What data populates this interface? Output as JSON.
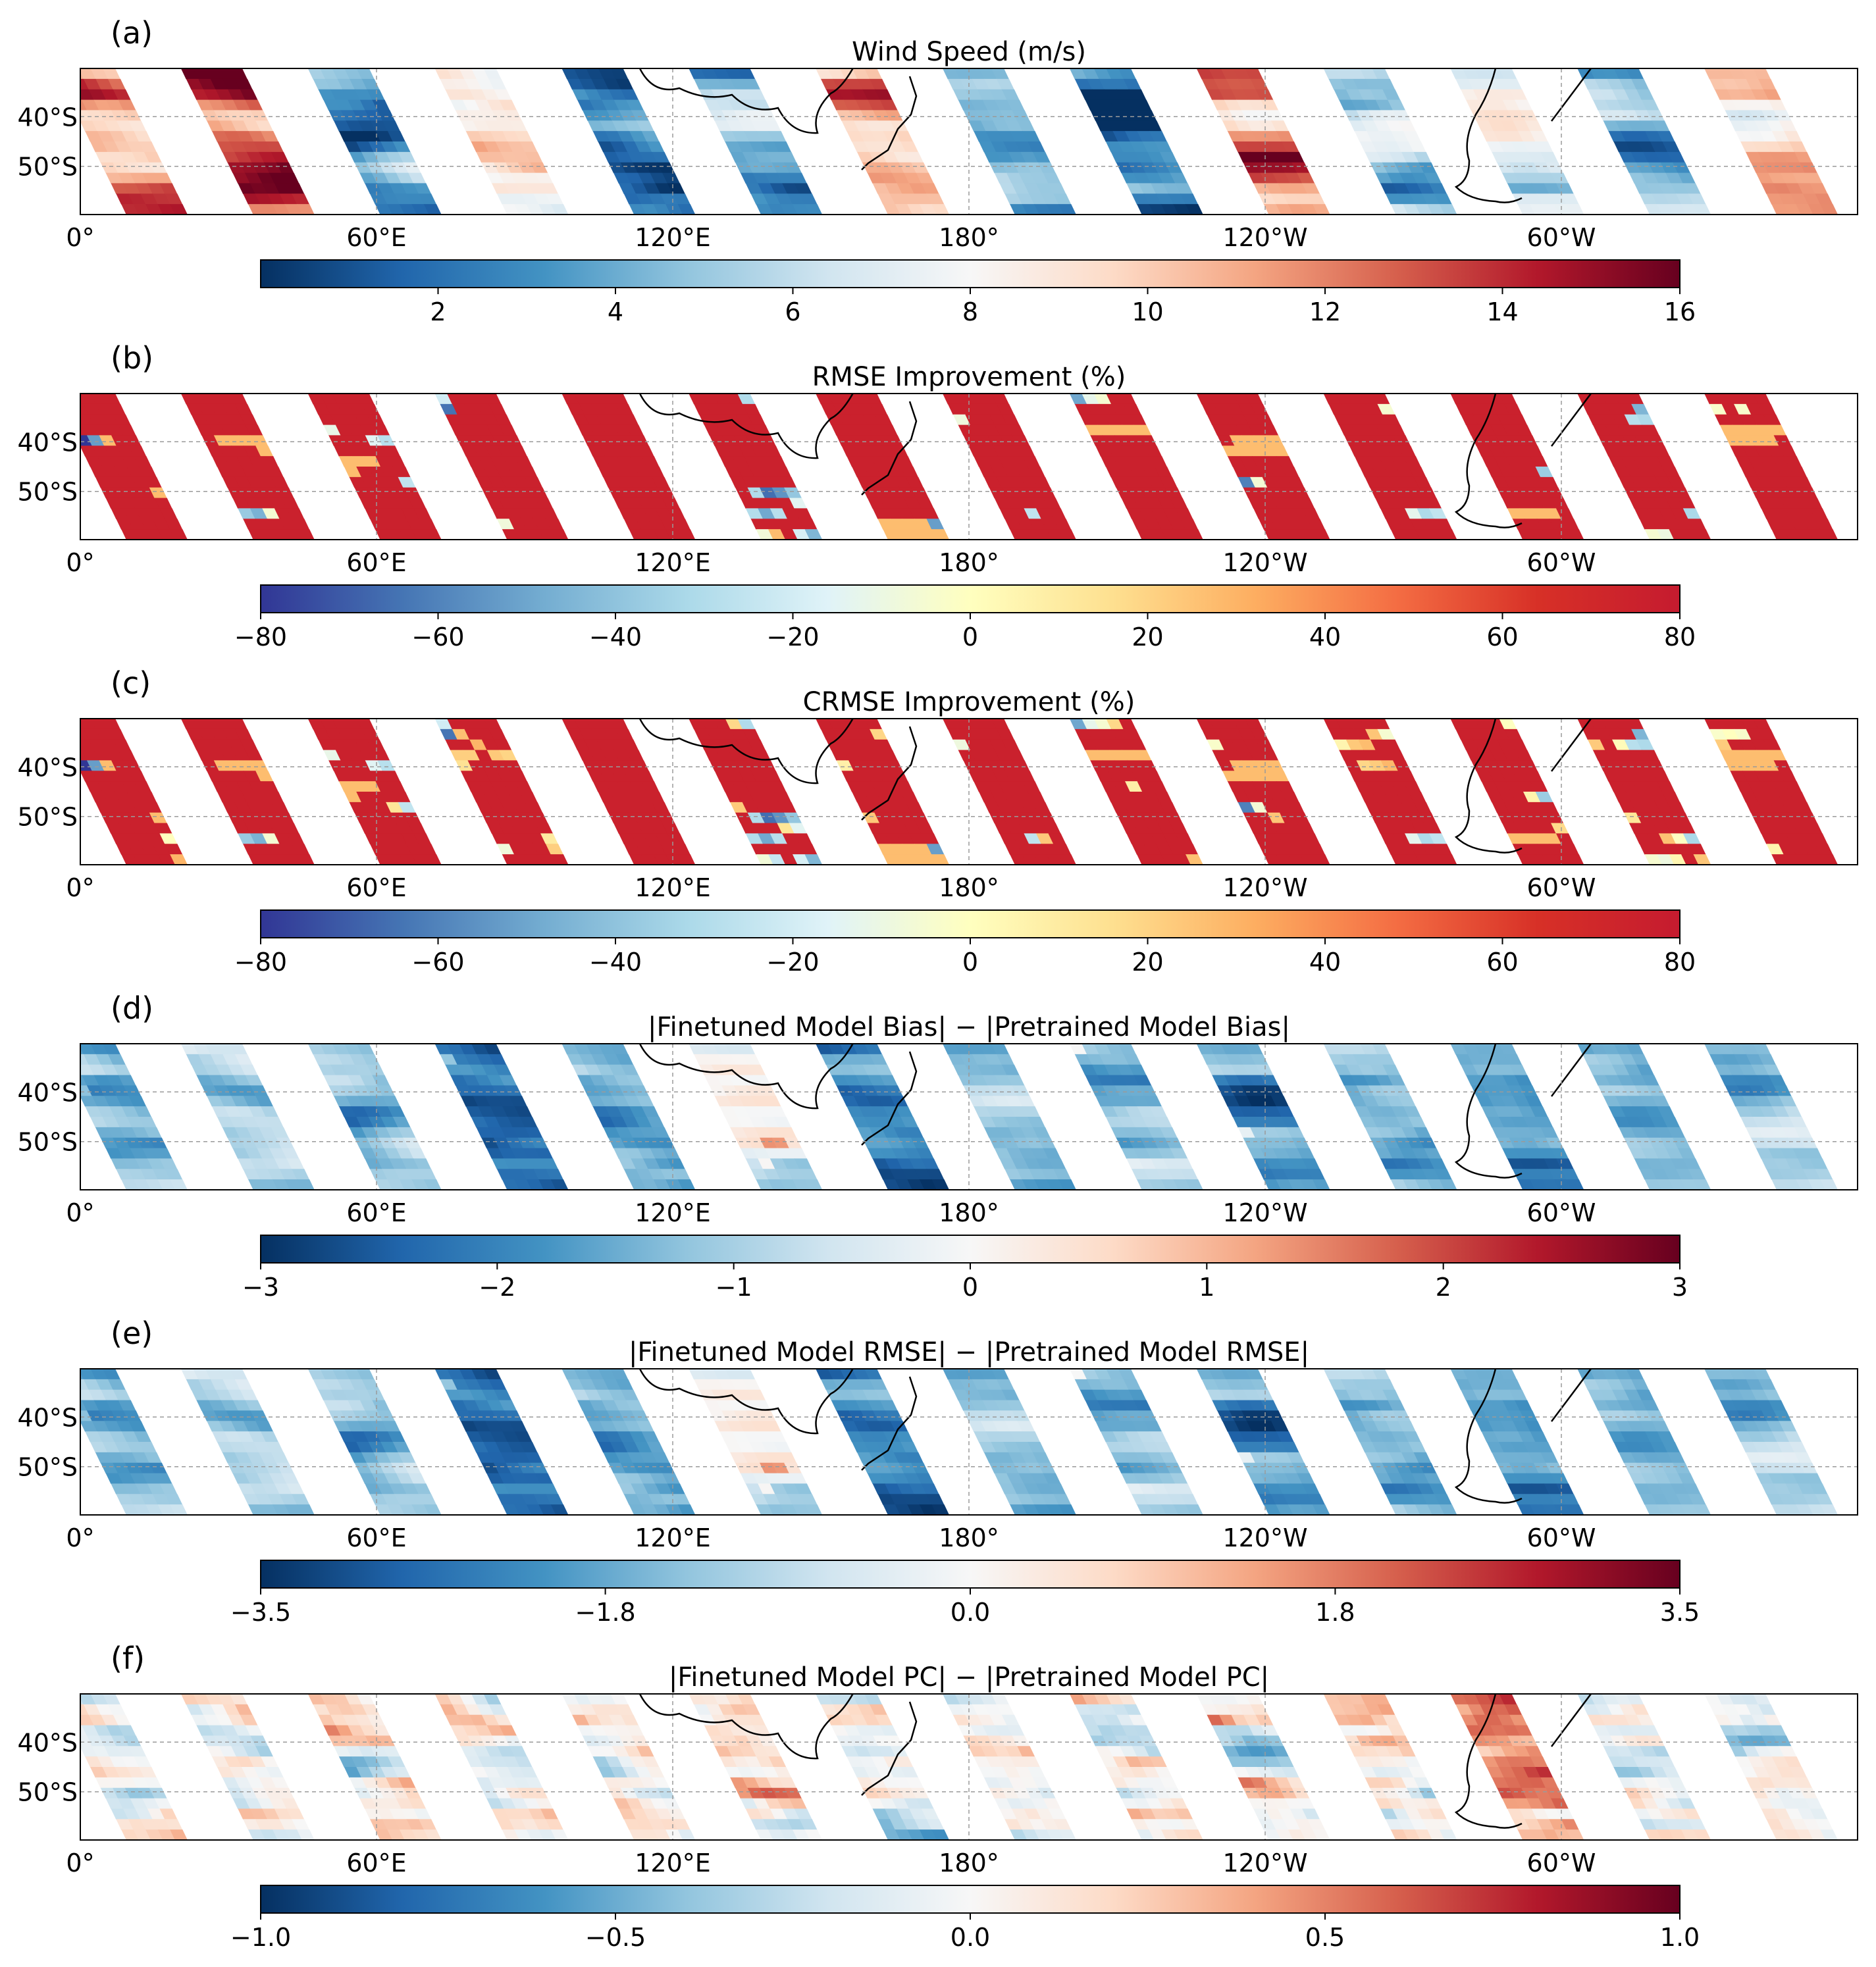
{
  "panels": [
    {
      "letter": "(a)",
      "title": "Wind Speed (m/s)",
      "cmap": "RdBu_r",
      "cticks": [
        "2",
        "4",
        "6",
        "8",
        "10",
        "12",
        "14",
        "16"
      ],
      "crange": [
        0,
        16
      ],
      "field": "speed",
      "lon_labels": [
        "0°",
        "60°E",
        "120°E",
        "180°",
        "120°W",
        "60°W"
      ],
      "lat_labels": [
        "40°S",
        "50°S"
      ]
    },
    {
      "letter": "(b)",
      "title": "RMSE Improvement (%)",
      "cmap": "RdYlBu_r",
      "cticks": [
        "−80",
        "−60",
        "−40",
        "−20",
        "0",
        "20",
        "40",
        "60",
        "80"
      ],
      "crange": [
        -80,
        80
      ],
      "field": "rmse",
      "lon_labels": [
        "0°",
        "60°E",
        "120°E",
        "180°",
        "120°W",
        "60°W"
      ],
      "lat_labels": [
        "40°S",
        "50°S"
      ]
    },
    {
      "letter": "(c)",
      "title": "CRMSE Improvement (%)",
      "cmap": "RdYlBu_r",
      "cticks": [
        "−80",
        "−60",
        "−40",
        "−20",
        "0",
        "20",
        "40",
        "60",
        "80"
      ],
      "crange": [
        -80,
        80
      ],
      "field": "crmse",
      "lon_labels": [
        "0°",
        "60°E",
        "120°E",
        "180°",
        "120°W",
        "60°W"
      ],
      "lat_labels": [
        "40°S",
        "50°S"
      ]
    },
    {
      "letter": "(d)",
      "title": "|Finetuned Model Bias| − |Pretrained Model Bias|",
      "cmap": "RdBu_r",
      "cticks": [
        "−3",
        "−2",
        "−1",
        "0",
        "1",
        "2",
        "3"
      ],
      "crange": [
        -3,
        3
      ],
      "field": "bias",
      "lon_labels": [
        "0°",
        "60°E",
        "120°E",
        "180°",
        "120°W",
        "60°W"
      ],
      "lat_labels": [
        "40°S",
        "50°S"
      ]
    },
    {
      "letter": "(e)",
      "title": "|Finetuned Model RMSE| − |Pretrained Model RMSE|",
      "cmap": "RdBu_r",
      "cticks": [
        "−3.5",
        "−1.8",
        "0.0",
        "1.8",
        "3.5"
      ],
      "crange": [
        -3.5,
        3.5
      ],
      "field": "rmsediff",
      "lon_labels": [
        "0°",
        "60°E",
        "120°E",
        "180°",
        "120°W",
        "60°W"
      ],
      "lat_labels": [
        "40°S",
        "50°S"
      ]
    },
    {
      "letter": "(f)",
      "title": "|Finetuned Model PC| − |Pretrained Model PC|",
      "cmap": "RdBu_r",
      "cticks": [
        "−1.0",
        "−0.5",
        "0.0",
        "0.5",
        "1.0"
      ],
      "crange": [
        -1.0,
        1.0
      ],
      "field": "pc",
      "lon_labels": [
        "0°",
        "60°E",
        "120°E",
        "180°",
        "120°W",
        "60°W"
      ],
      "lat_labels": [
        "40°S",
        "50°S"
      ]
    }
  ],
  "chart_data": {
    "type": "heatmap",
    "map_extent": {
      "lon": [
        0,
        360
      ],
      "lat": [
        -60,
        -30
      ]
    },
    "swath_count": 14,
    "colors": {
      "RdBu_r": [
        "#053061",
        "#2166ac",
        "#4393c3",
        "#92c5de",
        "#d1e5f0",
        "#f7f7f7",
        "#fddbc7",
        "#f4a582",
        "#d6604d",
        "#b2182b",
        "#67001f"
      ],
      "RdYlBu_r": [
        "#313695",
        "#4575b4",
        "#74add1",
        "#abd9e9",
        "#e0f3f8",
        "#ffffbf",
        "#fee090",
        "#fdae61",
        "#f46d43",
        "#d73027",
        "#c51b2f"
      ]
    }
  }
}
